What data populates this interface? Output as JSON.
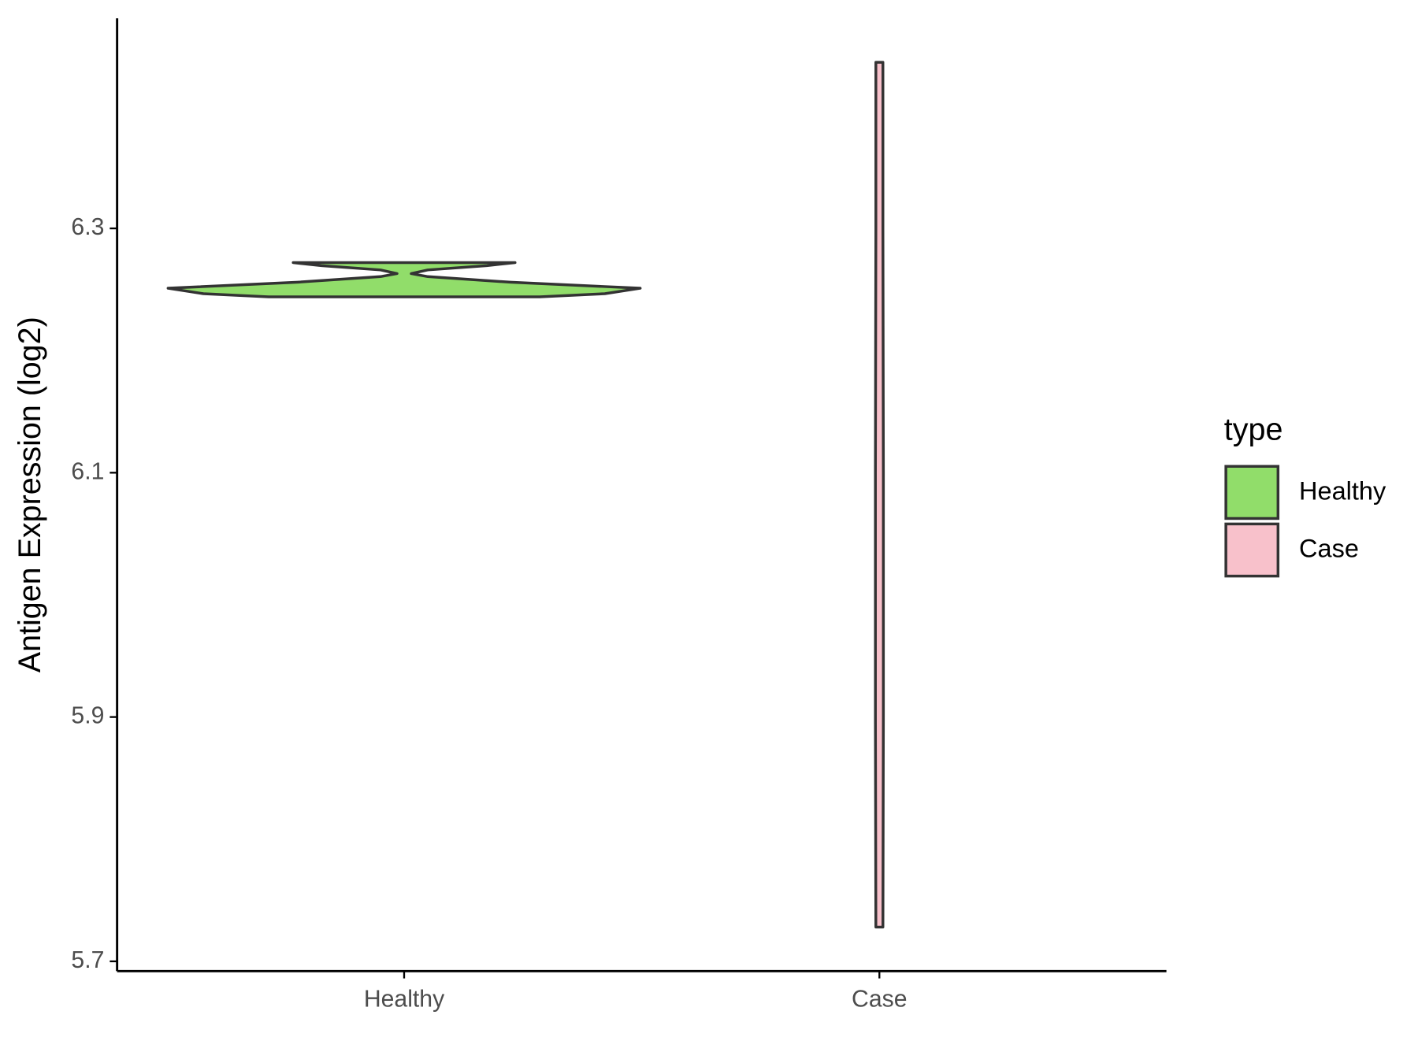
{
  "chart_data": {
    "type": "violin",
    "y_label": "Antigen Expression (log2)",
    "categories": [
      "Healthy",
      "Case"
    ],
    "legend_title": "type",
    "legend_position": "right",
    "ylim": [
      5.692,
      6.472
    ],
    "yticks": [
      5.7,
      5.9,
      6.1,
      6.3
    ],
    "grid": false,
    "series": [
      {
        "name": "Healthy",
        "color": "#91dd6a",
        "y": [
          6.244,
          6.2465,
          6.251,
          6.256,
          6.2605,
          6.263,
          6.266,
          6.2695,
          6.272
        ],
        "width": [
          0.574,
          0.85,
          1.0,
          0.45,
          0.1,
          0.03,
          0.1,
          0.35,
          0.47
        ]
      },
      {
        "name": "Case",
        "color": "#f8c1cb",
        "y": [
          5.728,
          5.9,
          6.1,
          6.3,
          6.436
        ],
        "width": [
          0.015,
          0.017,
          0.017,
          0.015,
          0.015
        ]
      }
    ]
  }
}
